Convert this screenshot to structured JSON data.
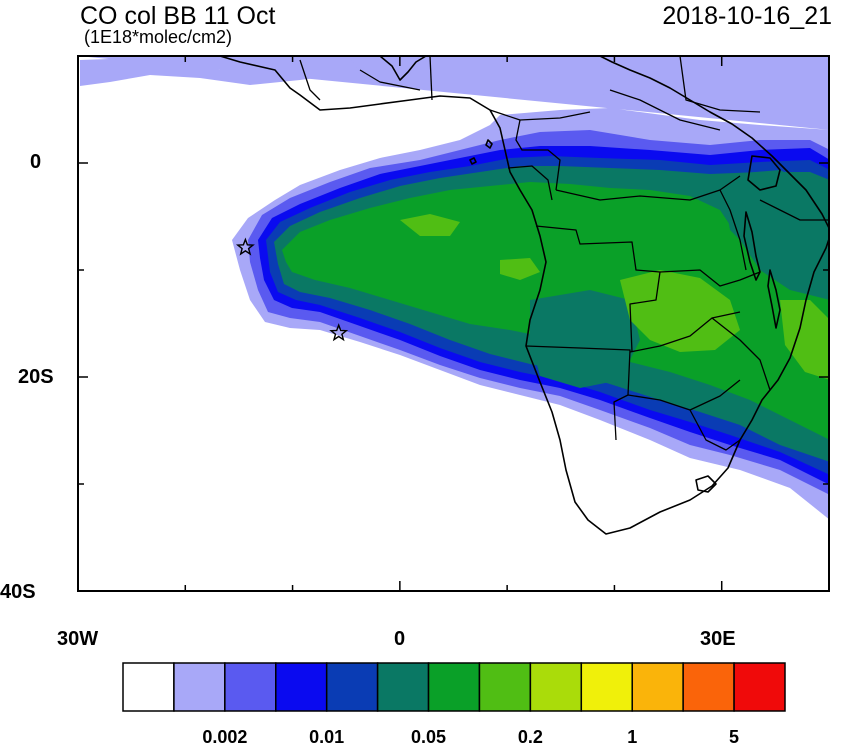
{
  "title": "CO col BB 11 Oct",
  "units": "(1E18*molec/cm2)",
  "timestamp": "2018-10-16_21",
  "axes": {
    "lat_labels": [
      {
        "value": 0,
        "text": "0"
      },
      {
        "value": -20,
        "text": "20S"
      },
      {
        "value": -40,
        "text": "40S"
      }
    ],
    "lon_labels": [
      {
        "value": -30,
        "text": "30W"
      },
      {
        "value": 0,
        "text": "0"
      },
      {
        "value": 30,
        "text": "30E"
      }
    ],
    "lon_range": [
      -30,
      40
    ],
    "lat_range": [
      -40,
      10
    ]
  },
  "colorbar": {
    "colors": [
      "#ffffff",
      "#a8a8f8",
      "#5a5af0",
      "#0a0af0",
      "#0a3cb4",
      "#0a7864",
      "#0aa028",
      "#50be14",
      "#aadc0a",
      "#f0f00a",
      "#fab40a",
      "#fa640a",
      "#f00a0a"
    ],
    "labels": [
      {
        "boundary": 2,
        "text": "0.002"
      },
      {
        "boundary": 4,
        "text": "0.01"
      },
      {
        "boundary": 6,
        "text": "0.05"
      },
      {
        "boundary": 8,
        "text": "0.2"
      },
      {
        "boundary": 10,
        "text": "1"
      },
      {
        "boundary": 12,
        "text": "5"
      }
    ]
  },
  "markers": [
    {
      "name": "star-marker-ascension",
      "lon": -14.4,
      "lat": -7.9
    },
    {
      "name": "star-marker-st-helena",
      "lon": -5.7,
      "lat": -15.9
    }
  ]
}
